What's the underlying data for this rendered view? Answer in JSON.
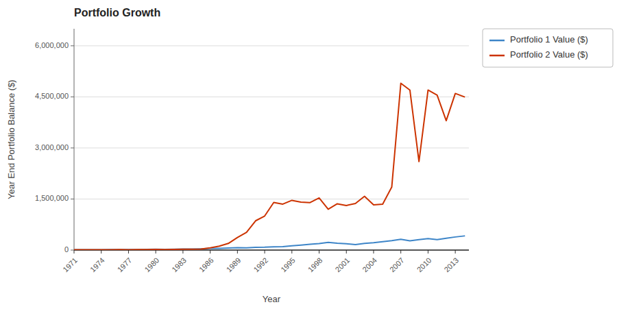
{
  "chart_data": {
    "type": "line",
    "title": "Portfolio Growth",
    "xlabel": "Year",
    "ylabel": "Year End Portfolio Balance ($)",
    "x": [
      1971,
      1972,
      1973,
      1974,
      1975,
      1976,
      1977,
      1978,
      1979,
      1980,
      1981,
      1982,
      1983,
      1984,
      1985,
      1986,
      1987,
      1988,
      1989,
      1990,
      1991,
      1992,
      1993,
      1994,
      1995,
      1996,
      1997,
      1998,
      1999,
      2000,
      2001,
      2002,
      2003,
      2004,
      2005,
      2006,
      2007,
      2008,
      2009,
      2010,
      2011,
      2012,
      2013,
      2014
    ],
    "series": [
      {
        "name": "Portfolio 1 Value ($)",
        "color": "#3d85c8",
        "values": [
          10000,
          12000,
          10500,
          9800,
          13000,
          15500,
          15000,
          17000,
          20000,
          24000,
          22000,
          26000,
          29000,
          31000,
          37000,
          48000,
          52000,
          60000,
          70000,
          65000,
          78000,
          85000,
          98000,
          102000,
          125000,
          148000,
          170000,
          192000,
          225000,
          200000,
          185000,
          160000,
          195000,
          215000,
          245000,
          275000,
          315000,
          270000,
          305000,
          335000,
          305000,
          345000,
          385000,
          415000
        ]
      },
      {
        "name": "Portfolio 2 Value ($)",
        "color": "#cc3300",
        "values": [
          10000,
          11000,
          9000,
          8000,
          11000,
          13000,
          12000,
          14000,
          17000,
          19000,
          17000,
          21000,
          23000,
          26000,
          32000,
          65000,
          115000,
          195000,
          370000,
          520000,
          860000,
          1000000,
          1400000,
          1350000,
          1460000,
          1410000,
          1395000,
          1530000,
          1200000,
          1360000,
          1310000,
          1370000,
          1580000,
          1330000,
          1350000,
          1850000,
          4900000,
          4700000,
          2600000,
          4700000,
          4550000,
          3800000,
          4600000,
          4500000
        ]
      }
    ],
    "xlim": [
      1971,
      2014.5
    ],
    "xticks": [
      1971,
      1974,
      1977,
      1980,
      1983,
      1986,
      1989,
      1992,
      1995,
      1998,
      2001,
      2004,
      2007,
      2010,
      2013
    ],
    "ylim": [
      0,
      6500000
    ],
    "yticks": [
      0,
      {
        "value": 1500000,
        "label": "1,500,000"
      },
      {
        "value": 3000000,
        "label": "3,000,000"
      },
      {
        "value": 4500000,
        "label": "4,500,000"
      },
      {
        "value": 6000000,
        "label": "6,000,000"
      }
    ],
    "grid": "y",
    "legend": "right"
  }
}
